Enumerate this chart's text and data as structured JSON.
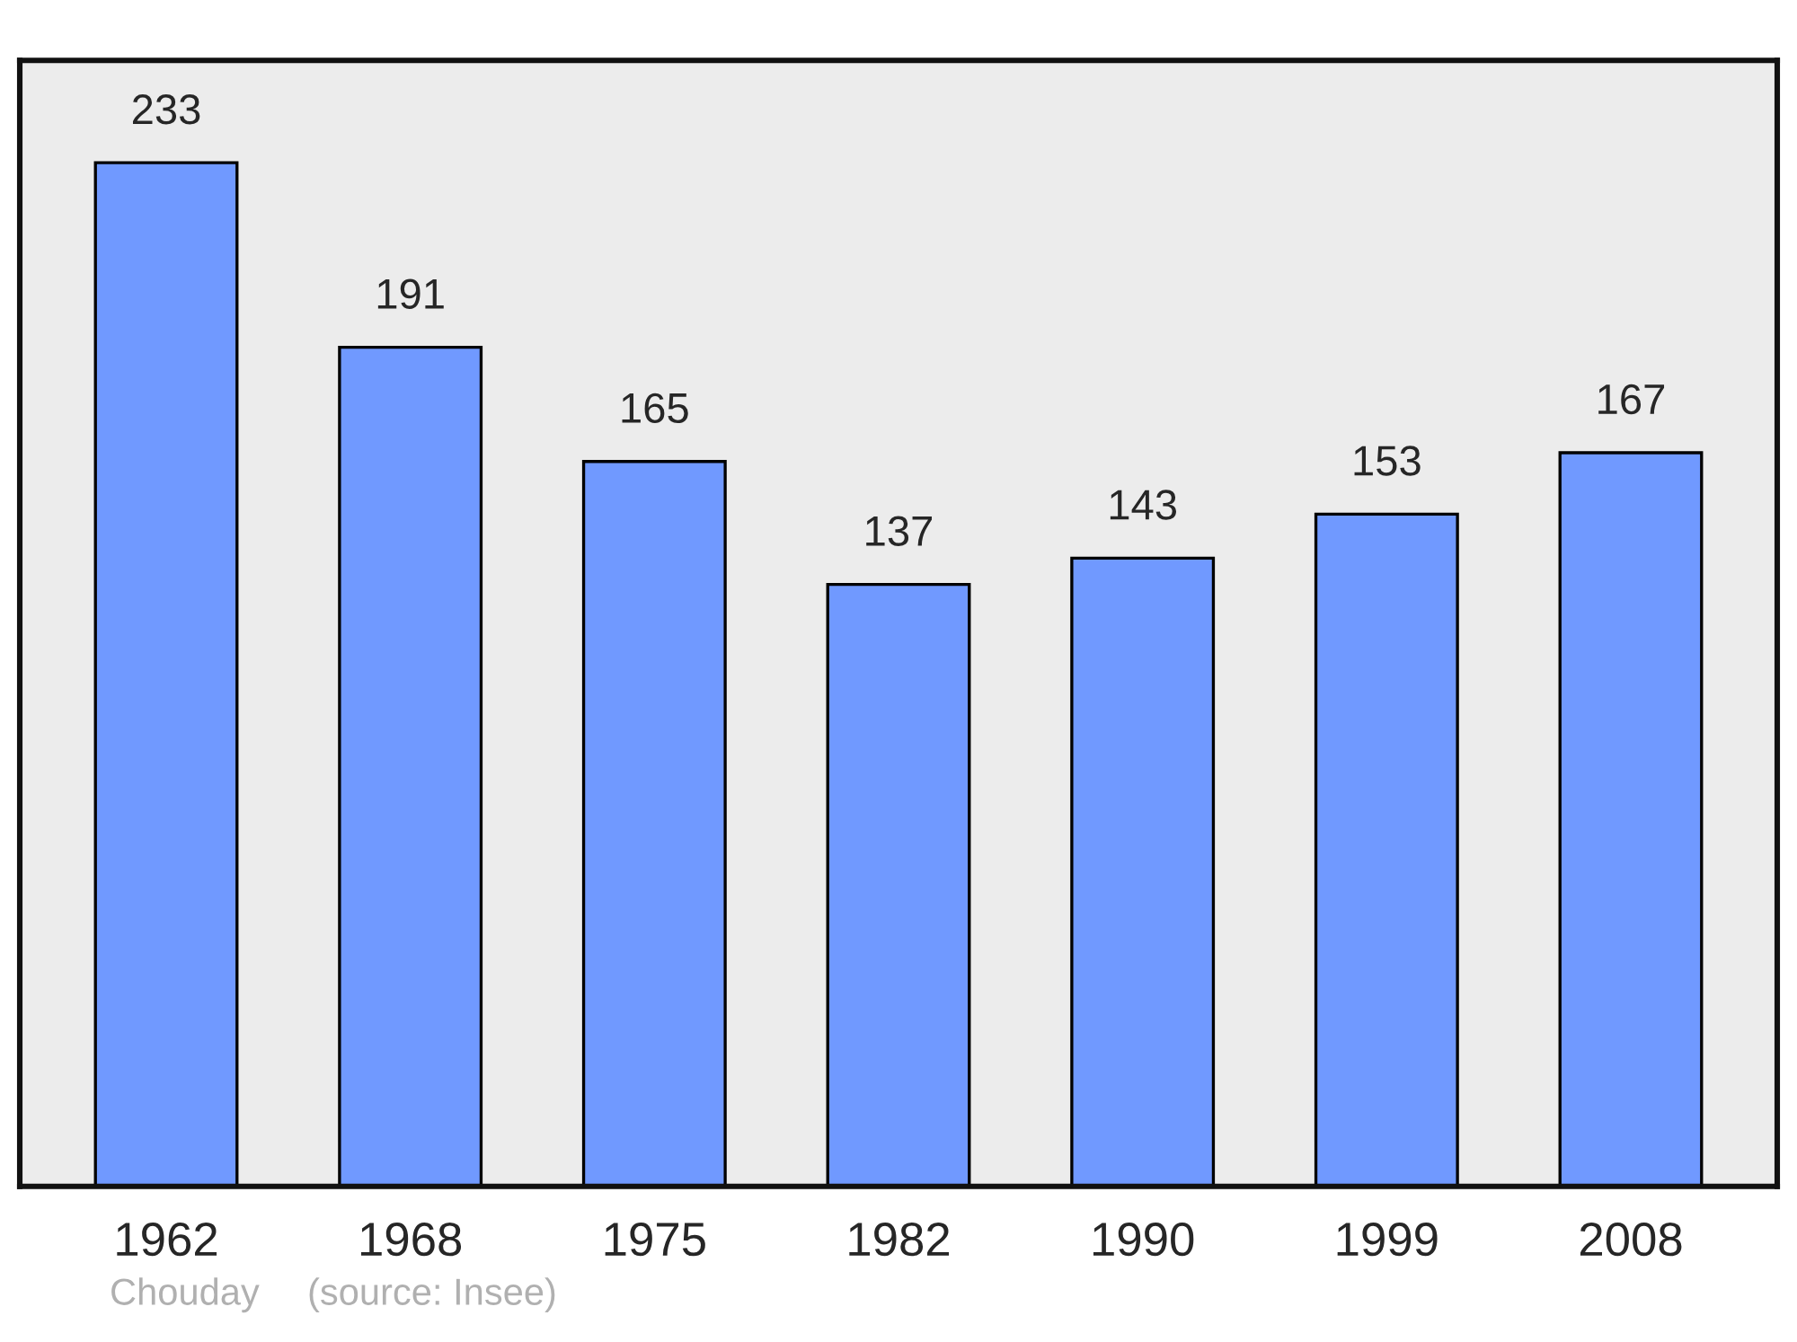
{
  "chart_data": {
    "type": "bar",
    "categories": [
      "1962",
      "1968",
      "1975",
      "1982",
      "1990",
      "1999",
      "2008"
    ],
    "values": [
      233,
      191,
      165,
      137,
      143,
      153,
      167
    ],
    "color": "#7099ff",
    "data_labels": true,
    "grid": false,
    "legend": false,
    "tick_labels": "x",
    "annotations": [
      "Chouday",
      "(source: Insee)"
    ]
  }
}
